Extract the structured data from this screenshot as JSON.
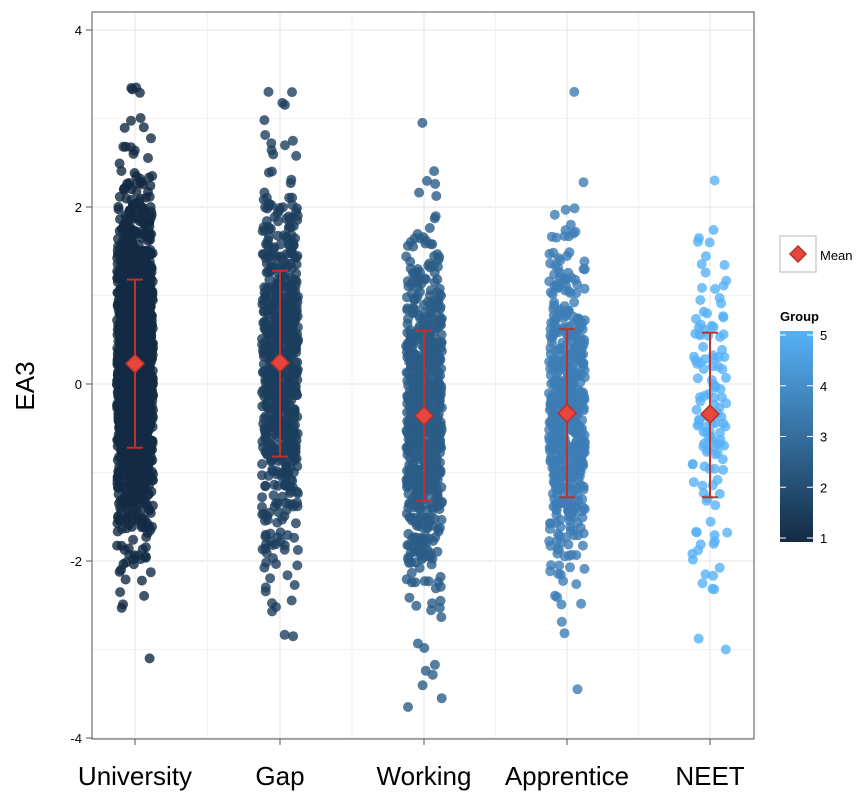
{
  "chart_data": {
    "type": "scatter",
    "subtype": "jitter-with-mean-errorbars",
    "ylabel": "EA3",
    "xlabel": "",
    "ylim": [
      -4,
      4
    ],
    "yticks": [
      -4,
      -2,
      0,
      2,
      4
    ],
    "ytick_labels": [
      "-4",
      "-2",
      "0",
      "2",
      "4"
    ],
    "grid": true,
    "categories": [
      "University",
      "Gap",
      "Working",
      "Apprentice",
      "NEET"
    ],
    "groups": [
      {
        "category": "University",
        "group_value": 1,
        "color": "#132b43",
        "mean": 0.23,
        "sd_low": -0.72,
        "sd_high": 1.18,
        "min": -3.1,
        "max": 3.35,
        "point_count": 1600,
        "core_sd": 0.95
      },
      {
        "category": "Gap",
        "group_value": 2,
        "color": "#1d3f5e",
        "mean": 0.24,
        "sd_low": -0.82,
        "sd_high": 1.28,
        "min": -2.85,
        "max": 3.3,
        "point_count": 700,
        "core_sd": 1.0
      },
      {
        "category": "Working",
        "group_value": 3,
        "color": "#2b5c87",
        "mean": -0.36,
        "sd_low": -1.32,
        "sd_high": 0.6,
        "min": -3.65,
        "max": 2.95,
        "point_count": 700,
        "core_sd": 0.95
      },
      {
        "category": "Apprentice",
        "group_value": 4,
        "color": "#3d7db5",
        "mean": -0.33,
        "sd_low": -1.28,
        "sd_high": 0.62,
        "min": -3.45,
        "max": 3.3,
        "point_count": 550,
        "core_sd": 0.95
      },
      {
        "category": "NEET",
        "group_value": 5,
        "color": "#56b1f7",
        "mean": -0.34,
        "sd_low": -1.28,
        "sd_high": 0.58,
        "min": -3.0,
        "max": 2.3,
        "point_count": 130,
        "core_sd": 0.95
      }
    ],
    "legend": {
      "placement": "right",
      "mean_label": "Mean",
      "colorbar_title": "Group",
      "colorbar_ticks": [
        "1",
        "2",
        "3",
        "4",
        "5"
      ],
      "color_low": "#132b43",
      "color_high": "#56b1f7"
    },
    "mean_marker_color": "#e8453c",
    "errorbar_color": "#c0302c"
  }
}
